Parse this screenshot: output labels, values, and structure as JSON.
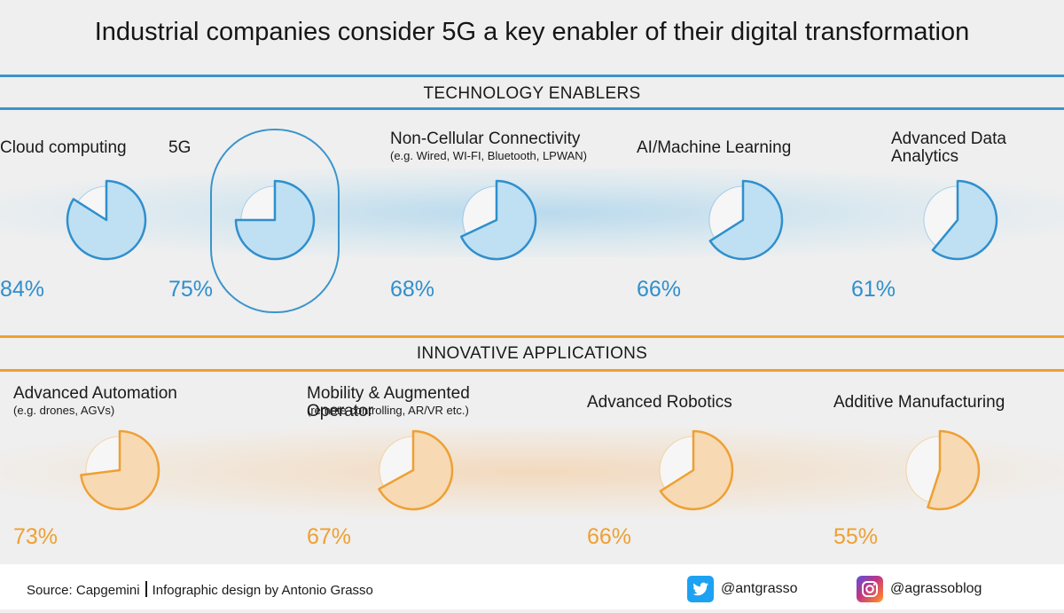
{
  "title": "Industrial companies consider 5G a key enabler of their digital transformation",
  "colors": {
    "blue_accent": "#2f8fcd",
    "blue_fill": "#bfe0f2",
    "orange_accent": "#eea033",
    "orange_fill": "#f7d9b4",
    "remainder_fill": "#f4f4f4"
  },
  "sections": {
    "technology": {
      "title": "TECHNOLOGY ENABLERS"
    },
    "applications": {
      "title": "INNOVATIVE APPLICATIONS"
    }
  },
  "chart_data": [
    {
      "type": "pie",
      "group": "TECHNOLOGY ENABLERS",
      "categories": [
        "Cloud computing",
        "5G",
        "Non-Cellular Connectivity",
        "AI/Machine Learning",
        "Advanced Data Analytics"
      ],
      "sublabels": [
        "",
        "",
        "(e.g. Wired, WI-FI, Bluetooth, LPWAN)",
        "",
        ""
      ],
      "values": [
        84,
        75,
        68,
        66,
        61
      ],
      "value_labels": [
        "84%",
        "75%",
        "68%",
        "66%",
        "61%"
      ],
      "highlighted": "5G"
    },
    {
      "type": "pie",
      "group": "INNOVATIVE APPLICATIONS",
      "categories": [
        "Advanced Automation",
        "Mobility & Augmented Operator",
        "Advanced Robotics",
        "Additive Manufacturing"
      ],
      "sublabels": [
        "(e.g. drones, AGVs)",
        "(remote controlling, AR/VR etc.)",
        "",
        ""
      ],
      "values": [
        73,
        67,
        66,
        55
      ],
      "value_labels": [
        "73%",
        "67%",
        "66%",
        "55%"
      ]
    }
  ],
  "footer": {
    "source": "Source: Capgemini",
    "credit": "Infographic design by Antonio Grasso",
    "twitter_icon": "twitter-icon",
    "twitter_handle": "@antgrasso",
    "instagram_icon": "instagram-icon",
    "instagram_handle": "@agrassoblog"
  }
}
